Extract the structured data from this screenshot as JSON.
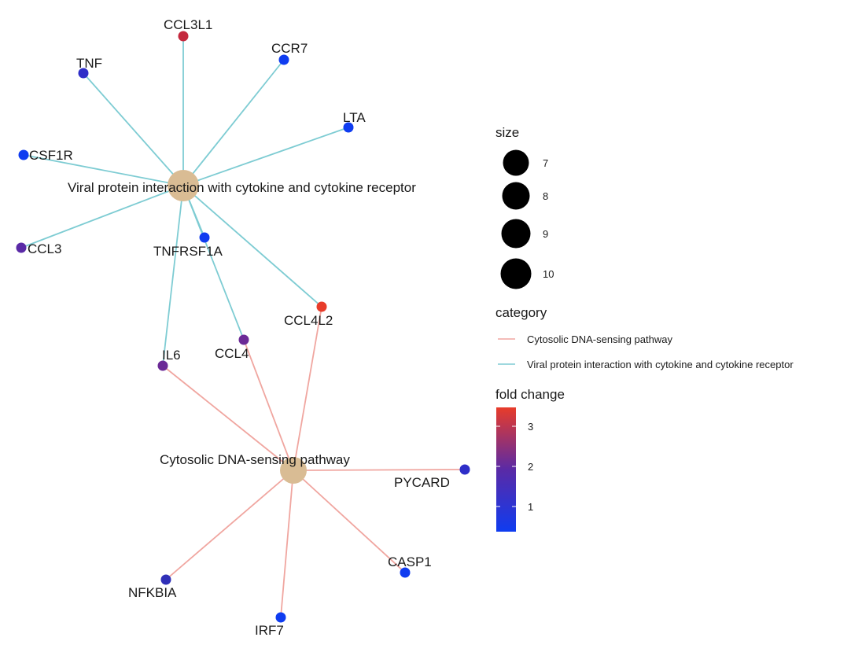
{
  "network": {
    "hubs": [
      {
        "id": "viral",
        "label": "Viral protein interaction with cytokine and cytokine receptor",
        "color": "#D9BC94"
      },
      {
        "id": "cyto",
        "label": "Cytosolic DNA-sensing pathway",
        "color": "#D9BC94"
      }
    ],
    "genes": [
      {
        "id": "CCL3L1",
        "label": "CCL3L1",
        "color": "#C4283D"
      },
      {
        "id": "CCR7",
        "label": "CCR7",
        "color": "#0F3CF0"
      },
      {
        "id": "TNF",
        "label": "TNF",
        "color": "#2E2EC8"
      },
      {
        "id": "LTA",
        "label": "LTA",
        "color": "#0F3CF0"
      },
      {
        "id": "CSF1R",
        "label": "CSF1R",
        "color": "#0F3CF0"
      },
      {
        "id": "CCL3",
        "label": "CCL3",
        "color": "#5A2AA6"
      },
      {
        "id": "TNFRSF1A",
        "label": "TNFRSF1A",
        "color": "#0F3CF0"
      },
      {
        "id": "CCL4L2",
        "label": "CCL4L2",
        "color": "#E83C2A"
      },
      {
        "id": "CCL4",
        "label": "CCL4",
        "color": "#6B2A96"
      },
      {
        "id": "IL6",
        "label": "IL6",
        "color": "#6B2A96"
      },
      {
        "id": "PYCARD",
        "label": "PYCARD",
        "color": "#2E2EC8"
      },
      {
        "id": "CASP1",
        "label": "CASP1",
        "color": "#0F3CF0"
      },
      {
        "id": "NFKBIA",
        "label": "NFKBIA",
        "color": "#3030B8"
      },
      {
        "id": "IRF7",
        "label": "IRF7",
        "color": "#0F3CF0"
      }
    ],
    "edges": [
      {
        "from": "viral",
        "to": "CCL3L1",
        "category": "viral"
      },
      {
        "from": "viral",
        "to": "CCR7",
        "category": "viral"
      },
      {
        "from": "viral",
        "to": "TNF",
        "category": "viral"
      },
      {
        "from": "viral",
        "to": "LTA",
        "category": "viral"
      },
      {
        "from": "viral",
        "to": "CSF1R",
        "category": "viral"
      },
      {
        "from": "viral",
        "to": "CCL3",
        "category": "viral"
      },
      {
        "from": "viral",
        "to": "TNFRSF1A",
        "category": "viral"
      },
      {
        "from": "viral",
        "to": "CCL4L2",
        "category": "viral"
      },
      {
        "from": "viral",
        "to": "CCL4",
        "category": "viral"
      },
      {
        "from": "viral",
        "to": "IL6",
        "category": "viral"
      },
      {
        "from": "cyto",
        "to": "IL6",
        "category": "cyto"
      },
      {
        "from": "cyto",
        "to": "CCL4",
        "category": "cyto"
      },
      {
        "from": "cyto",
        "to": "CCL4L2",
        "category": "cyto"
      },
      {
        "from": "cyto",
        "to": "PYCARD",
        "category": "cyto"
      },
      {
        "from": "cyto",
        "to": "CASP1",
        "category": "cyto"
      },
      {
        "from": "cyto",
        "to": "NFKBIA",
        "category": "cyto"
      },
      {
        "from": "cyto",
        "to": "IRF7",
        "category": "cyto"
      }
    ],
    "edge_colors": {
      "viral": "#7ECCD3",
      "cyto": "#F0A6A0"
    }
  },
  "legend": {
    "size": {
      "title": "size",
      "entries": [
        "7",
        "8",
        "9",
        "10"
      ],
      "color": "#000000"
    },
    "category": {
      "title": "category",
      "entries": [
        {
          "label": "Cytosolic DNA-sensing pathway",
          "color": "#F0A6A0"
        },
        {
          "label": "Viral protein interaction with cytokine and cytokine receptor",
          "color": "#7ECCD3"
        }
      ]
    },
    "fold_change": {
      "title": "fold change",
      "ticks": [
        "3",
        "2",
        "1"
      ],
      "gradient": [
        "#E83C2A",
        "#5A2AA6",
        "#0F3CF0"
      ]
    }
  }
}
